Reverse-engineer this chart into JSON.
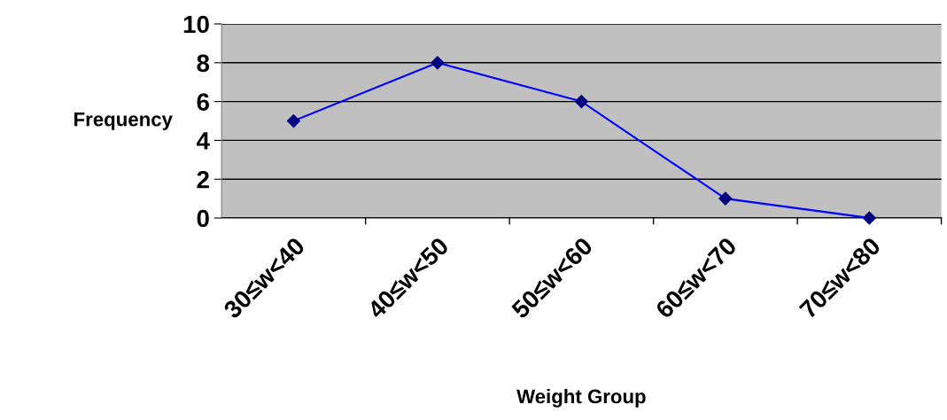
{
  "chart_data": {
    "type": "line",
    "xlabel": "Weight Group",
    "ylabel": "Frequency",
    "categories": [
      "30≤w<40",
      "40≤w<50",
      "50≤w<60",
      "60≤w<70",
      "70≤w<80"
    ],
    "series": [
      {
        "color": "#0000ff",
        "values": [
          5,
          8,
          6,
          1,
          0
        ]
      }
    ],
    "ylim": [
      0,
      10
    ],
    "yticks": [
      0,
      2,
      4,
      6,
      8,
      10
    ],
    "grid": "y",
    "marker": "diamond",
    "line_style": "solid",
    "legend": false
  }
}
